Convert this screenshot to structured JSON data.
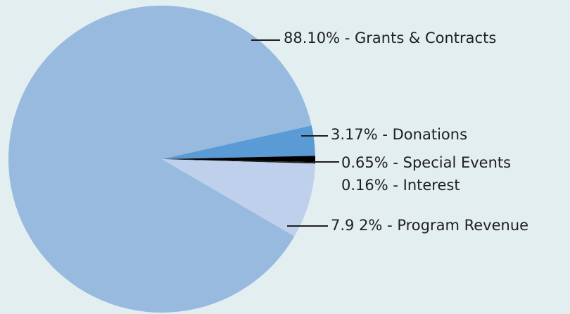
{
  "chart_data": {
    "type": "pie",
    "labels": [
      "88.10% - Grants & Contracts",
      "3.17% - Donations",
      "0.65% - Special Events",
      "0.16% - Interest",
      "7.9 2% - Program Revenue"
    ],
    "values": [
      88.1,
      3.17,
      0.65,
      0.16,
      7.92
    ],
    "colors": [
      "#98badf",
      "#5b9bd5",
      "#000000",
      "#222222",
      "#bfd0ec"
    ]
  }
}
